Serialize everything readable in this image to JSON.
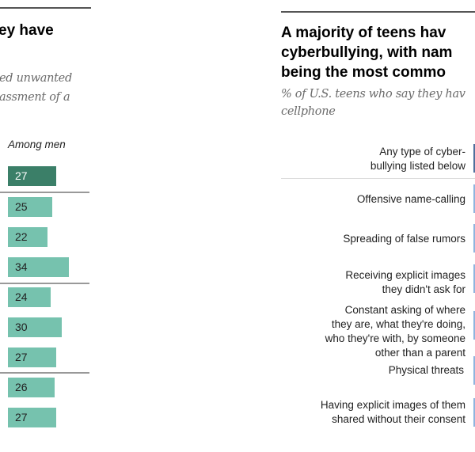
{
  "left_panel": {
    "title_fragment": "ey have",
    "subtitle_lines": [
      "ed unwanted",
      "assment of a"
    ],
    "column_header": "Among men"
  },
  "right_panel": {
    "title_lines": [
      "A majority of teens hav",
      "cyberbullying, with nam",
      "being the most commo"
    ],
    "subtitle_lines": [
      "% of U.S. teens who say they hav",
      "cellphone"
    ]
  },
  "colors": {
    "left_bar_total": "#3b7f68",
    "left_bar": "#76c2ae",
    "right_bar_total": "#4f6f9c",
    "right_bar": "#8fb4de"
  },
  "chart_data": [
    {
      "type": "bar",
      "orientation": "horizontal",
      "title": "...ey have",
      "series": [
        {
          "name": "Among men",
          "values": [
            27,
            25,
            22,
            34,
            24,
            30,
            27,
            26,
            27
          ]
        }
      ],
      "categories": [],
      "groups": [
        [
          0
        ],
        [
          1,
          2,
          3
        ],
        [
          4,
          5,
          6
        ],
        [
          7,
          8
        ]
      ],
      "highlighted_index": 0,
      "labels": [
        "27",
        "25",
        "22",
        "34",
        "24",
        "30",
        "27",
        "26",
        "27"
      ],
      "xlim": [
        0,
        100
      ],
      "grid": false
    },
    {
      "type": "bar",
      "orientation": "horizontal",
      "title": "A majority of teens hav... cyberbullying, with nam... being the most commo...",
      "subtitle": "% of U.S. teens who say they hav... cellphone",
      "categories": [
        "Any type of cyber-\nbullying listed below",
        "Offensive name-calling",
        "Spreading of false rumors",
        "Receiving explicit images\nthey didn't ask for",
        "Constant asking of where\nthey are, what they're doing,\nwho they're with, by someone\nother than a parent",
        "Physical threats",
        "Having explicit images of them\nshared without their consent"
      ],
      "values": [],
      "note": "bar values cropped out of view",
      "highlighted_index": 0
    }
  ]
}
